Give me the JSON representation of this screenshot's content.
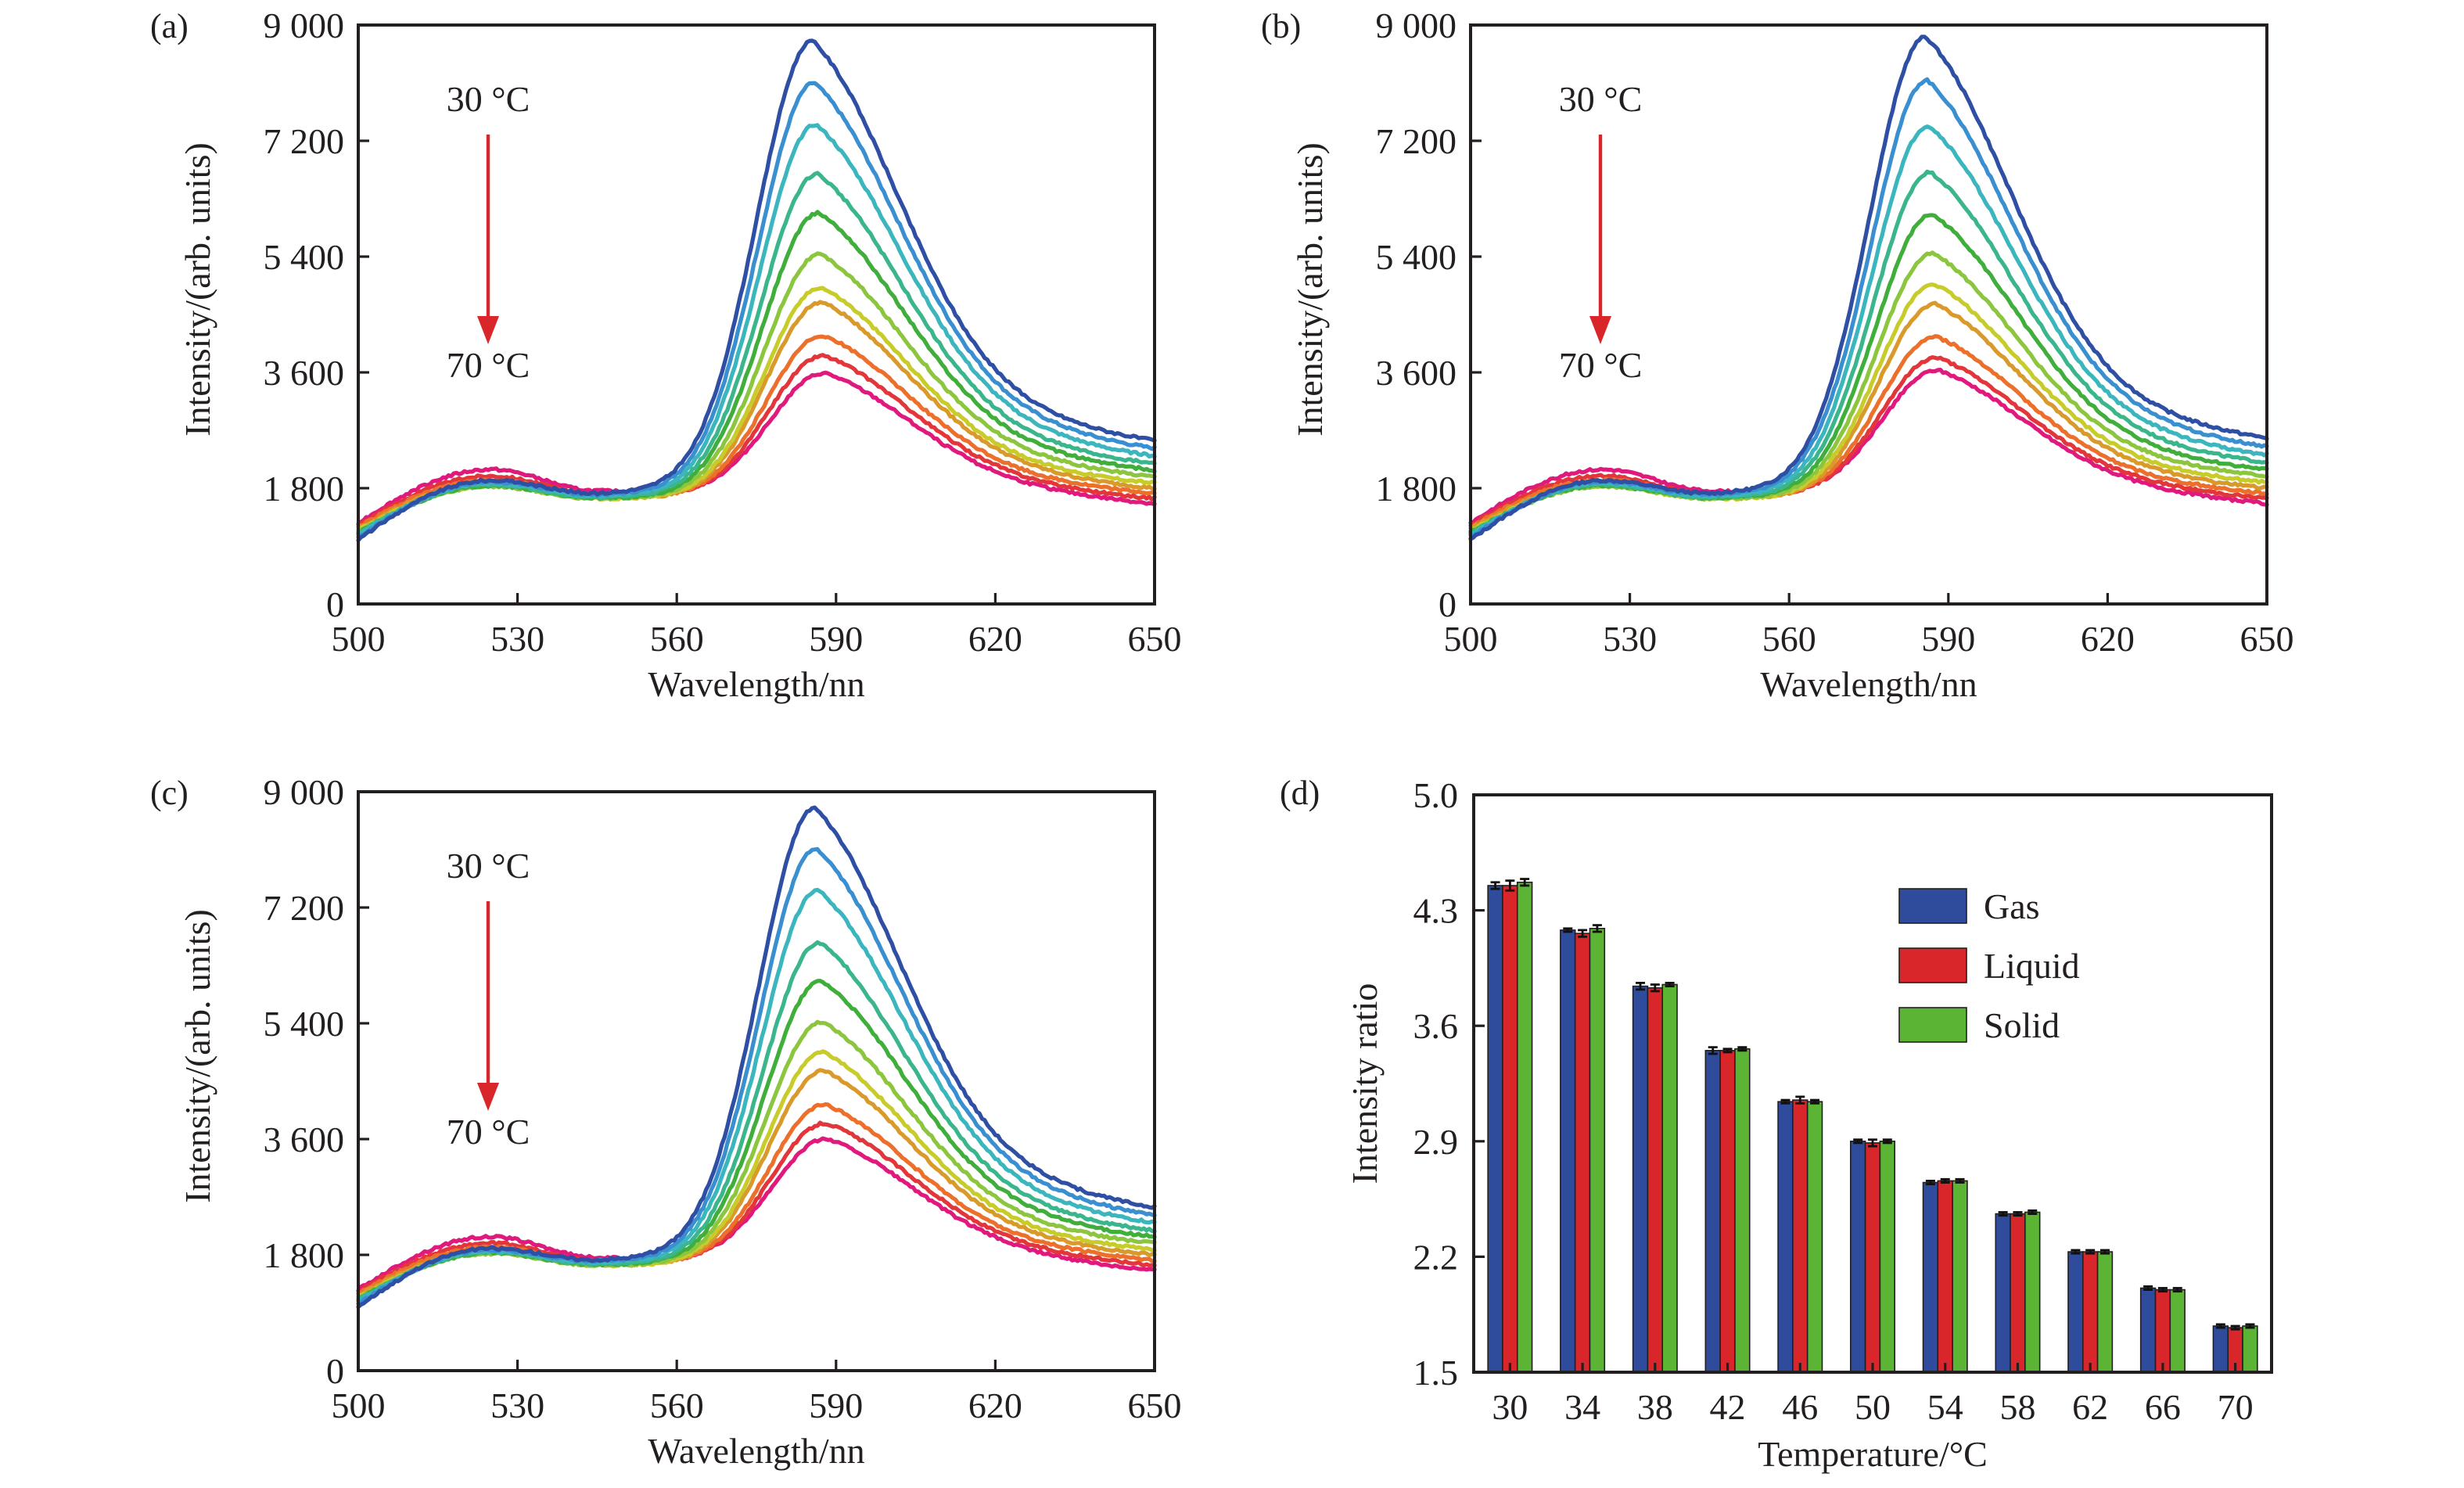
{
  "figure": {
    "temperatures_celsius": [
      30,
      34,
      38,
      42,
      46,
      50,
      54,
      58,
      62,
      66,
      70
    ],
    "curve_colors": [
      "#2e4fa3",
      "#3a8fd0",
      "#3bb6be",
      "#3bb68c",
      "#3fae3a",
      "#8cc63f",
      "#c8cc2a",
      "#d99a2b",
      "#ec6f2b",
      "#e2363b",
      "#e01a7c"
    ],
    "arrow_color": "#d9262b"
  },
  "chart_data": [
    {
      "panel": "(a)",
      "type": "line",
      "title": "",
      "xlabel": "Wavelength/nn",
      "ylabel": "Intensity/(arb. units)",
      "xlim": [
        500,
        650
      ],
      "ylim": [
        0,
        9000
      ],
      "xticks": [
        500,
        530,
        560,
        590,
        620,
        650
      ],
      "xtick_labels": [
        "500",
        "530",
        "560",
        "590",
        "620",
        "650"
      ],
      "yticks": [
        0,
        1800,
        3600,
        5400,
        7200,
        9000
      ],
      "ytick_labels": [
        "0",
        "1 800",
        "3 600",
        "5 400",
        "7 200",
        "9 000"
      ],
      "annotations": {
        "top": "30 °C",
        "bottom": "70 °C"
      },
      "grid": false,
      "series_params": {
        "description": "Per-temperature spectral features (30 °C → 70 °C)",
        "peak_intensity": [
          8660,
          8030,
          7400,
          6650,
          6060,
          5430,
          4940,
          4740,
          4250,
          3970,
          3740
        ],
        "peak_wavelength": [
          585.6,
          585.9,
          586.2,
          586.5,
          586.8,
          587.0,
          587.2,
          587.4,
          587.6,
          587.8,
          588.0
        ],
        "intensity_at_500": [
          1000,
          1040,
          1080,
          1100,
          1110,
          1120,
          1140,
          1170,
          1200,
          1230,
          1260
        ],
        "shoulder_525": [
          1920,
          1900,
          1880,
          1860,
          1840,
          1830,
          1840,
          1880,
          1930,
          1990,
          2090
        ],
        "valley_545": [
          1720,
          1700,
          1680,
          1660,
          1650,
          1640,
          1640,
          1650,
          1680,
          1710,
          1760
        ],
        "intensity_at_650": [
          2540,
          2420,
          2300,
          2180,
          2080,
          1980,
          1880,
          1800,
          1720,
          1640,
          1560
        ]
      }
    },
    {
      "panel": "(b)",
      "type": "line",
      "title": "",
      "xlabel": "Wavelength/nn",
      "ylabel": "Intensity/(arb. units)",
      "xlim": [
        500,
        650
      ],
      "ylim": [
        0,
        9000
      ],
      "xticks": [
        500,
        530,
        560,
        590,
        620,
        650
      ],
      "xtick_labels": [
        "500",
        "530",
        "560",
        "590",
        "620",
        "650"
      ],
      "yticks": [
        0,
        1800,
        3600,
        5400,
        7200,
        9000
      ],
      "ytick_labels": [
        "0",
        "1 800",
        "3 600",
        "5 400",
        "7 200",
        "9 000"
      ],
      "annotations": {
        "top": "30 °C",
        "bottom": "70 °C"
      },
      "grid": false,
      "series_params": {
        "description": "Per-temperature spectral features (30 °C → 70 °C)",
        "peak_intensity": [
          8710,
          8060,
          7370,
          6670,
          6030,
          5440,
          4990,
          4710,
          4230,
          3940,
          3790
        ],
        "peak_wavelength": [
          585.7,
          586.0,
          586.3,
          586.6,
          586.9,
          587.1,
          587.3,
          587.5,
          587.7,
          587.9,
          588.1
        ],
        "intensity_at_500": [
          1000,
          1040,
          1080,
          1100,
          1110,
          1120,
          1140,
          1170,
          1200,
          1230,
          1260
        ],
        "shoulder_525": [
          1920,
          1900,
          1880,
          1860,
          1840,
          1830,
          1840,
          1880,
          1930,
          1990,
          2090
        ],
        "valley_545": [
          1720,
          1700,
          1680,
          1660,
          1650,
          1640,
          1640,
          1650,
          1680,
          1710,
          1760
        ],
        "intensity_at_650": [
          2580,
          2450,
          2320,
          2200,
          2090,
          1990,
          1890,
          1800,
          1720,
          1640,
          1560
        ]
      }
    },
    {
      "panel": "(c)",
      "type": "line",
      "title": "",
      "xlabel": "Wavelength/nn",
      "ylabel": "Intensity/(arb. units)",
      "xlim": [
        500,
        650
      ],
      "ylim": [
        0,
        9000
      ],
      "xticks": [
        500,
        530,
        560,
        590,
        620,
        650
      ],
      "xtick_labels": [
        "500",
        "530",
        "560",
        "590",
        "620",
        "650"
      ],
      "yticks": [
        0,
        1800,
        3600,
        5400,
        7200,
        9000
      ],
      "ytick_labels": [
        "0",
        "1 800",
        "3 600",
        "5 400",
        "7 200",
        "9 000"
      ],
      "annotations": {
        "top": "30 °C",
        "bottom": "70 °C"
      },
      "grid": false,
      "series_params": {
        "description": "Per-temperature spectral features (30 °C → 70 °C)",
        "peak_intensity": [
          8660,
          8050,
          7420,
          6620,
          6040,
          5420,
          4970,
          4710,
          4210,
          3960,
          3760
        ],
        "peak_wavelength": [
          586.0,
          586.3,
          586.6,
          586.9,
          587.2,
          587.4,
          587.6,
          587.8,
          588.0,
          588.2,
          588.4
        ],
        "intensity_at_500": [
          1000,
          1040,
          1080,
          1100,
          1110,
          1120,
          1140,
          1170,
          1200,
          1230,
          1260
        ],
        "shoulder_525": [
          1900,
          1880,
          1860,
          1850,
          1830,
          1820,
          1830,
          1870,
          1920,
          1980,
          2080
        ],
        "valley_545": [
          1720,
          1700,
          1680,
          1660,
          1650,
          1640,
          1640,
          1650,
          1680,
          1710,
          1760
        ],
        "intensity_at_650": [
          2540,
          2420,
          2300,
          2180,
          2080,
          1980,
          1880,
          1800,
          1720,
          1640,
          1560
        ]
      }
    },
    {
      "panel": "(d)",
      "type": "bar",
      "title": "",
      "xlabel": "Temperature/°C",
      "ylabel": "Intensity ratio",
      "ylim": [
        1.5,
        5.0
      ],
      "yticks": [
        1.5,
        2.2,
        2.9,
        3.6,
        4.3,
        5.0
      ],
      "ytick_labels": [
        "1.5",
        "2.2",
        "2.9",
        "3.6",
        "4.3",
        "5.0"
      ],
      "categories": [
        "30",
        "34",
        "38",
        "42",
        "46",
        "50",
        "54",
        "58",
        "62",
        "66",
        "70"
      ],
      "legend_position": "top-right",
      "grid": false,
      "series": [
        {
          "name": "Gas",
          "color": "#2f4b9b",
          "values": [
            4.45,
            4.18,
            3.84,
            3.45,
            3.14,
            2.9,
            2.65,
            2.46,
            2.23,
            2.01,
            1.78
          ],
          "errors": [
            0.02,
            0.01,
            0.02,
            0.02,
            0.01,
            0.01,
            0.01,
            0.01,
            0.01,
            0.01,
            0.01
          ]
        },
        {
          "name": "Liquid",
          "color": "#d9262b",
          "values": [
            4.45,
            4.16,
            3.83,
            3.45,
            3.15,
            2.89,
            2.66,
            2.46,
            2.23,
            2.0,
            1.77
          ],
          "errors": [
            0.03,
            0.02,
            0.02,
            0.01,
            0.02,
            0.02,
            0.01,
            0.01,
            0.01,
            0.01,
            0.01
          ]
        },
        {
          "name": "Solid",
          "color": "#5cb435",
          "values": [
            4.47,
            4.19,
            3.85,
            3.46,
            3.14,
            2.9,
            2.66,
            2.47,
            2.23,
            2.0,
            1.78
          ],
          "errors": [
            0.02,
            0.02,
            0.01,
            0.01,
            0.01,
            0.01,
            0.01,
            0.01,
            0.01,
            0.01,
            0.01
          ]
        }
      ]
    }
  ]
}
